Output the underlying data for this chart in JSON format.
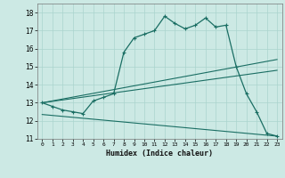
{
  "xlabel": "Humidex (Indice chaleur)",
  "background_color": "#cce9e4",
  "line_color": "#1a6e63",
  "grid_color": "#aad4ce",
  "xlim": [
    -0.5,
    23.5
  ],
  "ylim": [
    11,
    18.5
  ],
  "yticks": [
    11,
    12,
    13,
    14,
    15,
    16,
    17,
    18
  ],
  "xticks": [
    0,
    1,
    2,
    3,
    4,
    5,
    6,
    7,
    8,
    9,
    10,
    11,
    12,
    13,
    14,
    15,
    16,
    17,
    18,
    19,
    20,
    21,
    22,
    23
  ],
  "curve1_x": [
    0,
    1,
    2,
    3,
    4,
    5,
    6,
    7,
    8,
    9,
    10,
    11,
    12,
    13,
    14,
    15,
    16,
    17,
    18,
    19,
    20,
    21,
    22,
    23
  ],
  "curve1_y": [
    13.0,
    12.8,
    12.6,
    12.5,
    12.4,
    13.1,
    13.3,
    13.5,
    15.8,
    16.6,
    16.8,
    17.0,
    17.8,
    17.4,
    17.1,
    17.3,
    17.7,
    17.2,
    17.3,
    15.0,
    13.5,
    12.5,
    11.3,
    11.15
  ],
  "curve2_x": [
    0,
    23
  ],
  "curve2_y": [
    13.0,
    15.4
  ],
  "curve3_x": [
    0,
    23
  ],
  "curve3_y": [
    13.0,
    14.8
  ],
  "curve4_x": [
    0,
    23
  ],
  "curve4_y": [
    12.35,
    11.15
  ]
}
